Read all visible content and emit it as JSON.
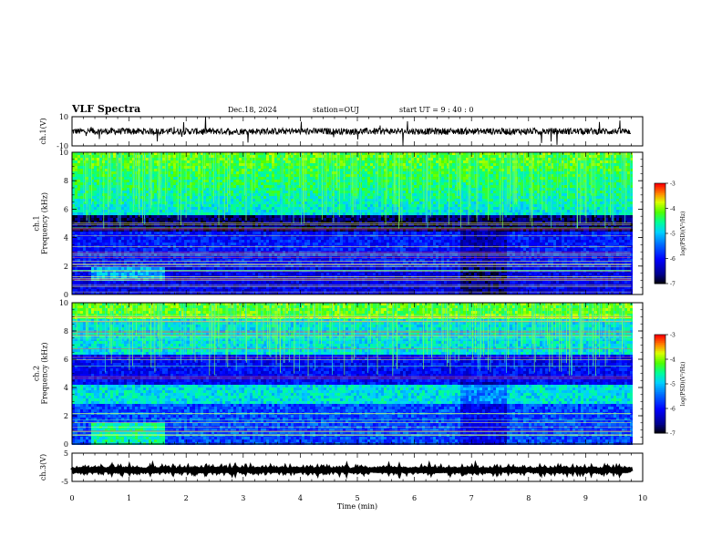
{
  "header": {
    "title": "VLF Spectra",
    "date": "Dec.18, 2024",
    "station": "station=OUJ",
    "start": "start  UT  =   9 : 40 : 0"
  },
  "colors": {
    "scale": [
      "#000000",
      "#0000aa",
      "#0000ff",
      "#0066ff",
      "#00ccff",
      "#00ff99",
      "#44ff00",
      "#ccff00",
      "#ffff00",
      "#ff8800",
      "#ff0000",
      "#ffffff"
    ]
  },
  "chart_data": [
    {
      "type": "line",
      "panel": "ch1-waveform",
      "ylabel": "ch.1(V)",
      "y_ticks": [
        "10",
        "-10"
      ],
      "ylim": [
        -10,
        10
      ],
      "xlim": [
        0,
        10
      ],
      "trace_level": 0,
      "trace_extent_min": [
        0,
        9.8
      ]
    },
    {
      "type": "heatmap",
      "panel": "ch1-spectrogram",
      "ylabel": "ch.1\nFrequency (kHz)",
      "y_ticks": [
        "0",
        "2",
        "4",
        "6",
        "8",
        "10"
      ],
      "ylim": [
        0,
        10
      ],
      "xlim": [
        0,
        10
      ],
      "data_extent_min": [
        0,
        9.8
      ],
      "colorbar": {
        "label": "log(PSD)(V²/Hz)",
        "ticks": [
          "-3",
          "-4",
          "-5",
          "-6",
          "-7"
        ],
        "range": [
          -7,
          -3
        ]
      }
    },
    {
      "type": "heatmap",
      "panel": "ch2-spectrogram",
      "ylabel": "ch.2\nFrequency (kHz)",
      "y_ticks": [
        "0",
        "2",
        "4",
        "6",
        "8",
        "10"
      ],
      "ylim": [
        0,
        10
      ],
      "xlim": [
        0,
        10
      ],
      "data_extent_min": [
        0,
        9.8
      ],
      "colorbar": {
        "label": "log(PSD)(V²/Hz)",
        "ticks": [
          "-3",
          "-4",
          "-5",
          "-6",
          "-7"
        ],
        "range": [
          -7,
          -3
        ]
      }
    },
    {
      "type": "line",
      "panel": "ch3-waveform",
      "ylabel": "ch.3(V)",
      "y_ticks": [
        "5",
        "-5"
      ],
      "ylim": [
        -5,
        5
      ],
      "xlim": [
        0,
        10
      ],
      "trace_level": -1,
      "trace_extent_min": [
        0,
        9.8
      ]
    }
  ],
  "xaxis": {
    "label": "Time (min)",
    "ticks": [
      "0",
      "1",
      "2",
      "3",
      "4",
      "5",
      "6",
      "7",
      "8",
      "9",
      "10"
    ]
  }
}
